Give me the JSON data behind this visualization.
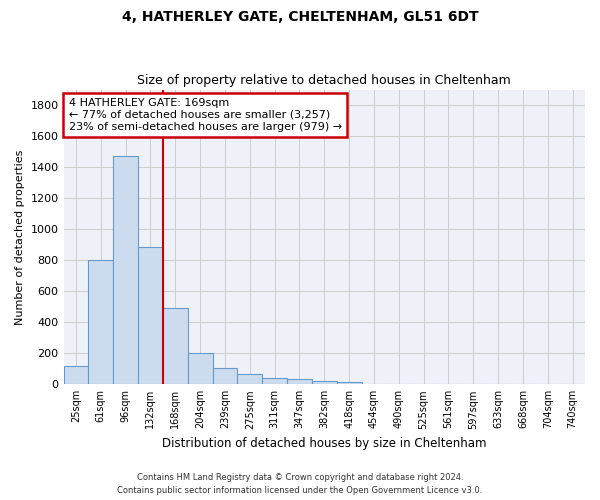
{
  "title1": "4, HATHERLEY GATE, CHELTENHAM, GL51 6DT",
  "title2": "Size of property relative to detached houses in Cheltenham",
  "xlabel": "Distribution of detached houses by size in Cheltenham",
  "ylabel": "Number of detached properties",
  "footer1": "Contains HM Land Registry data © Crown copyright and database right 2024.",
  "footer2": "Contains public sector information licensed under the Open Government Licence v3.0.",
  "categories": [
    "25sqm",
    "61sqm",
    "96sqm",
    "132sqm",
    "168sqm",
    "204sqm",
    "239sqm",
    "275sqm",
    "311sqm",
    "347sqm",
    "382sqm",
    "418sqm",
    "454sqm",
    "490sqm",
    "525sqm",
    "561sqm",
    "597sqm",
    "633sqm",
    "668sqm",
    "704sqm",
    "740sqm"
  ],
  "values": [
    120,
    800,
    1470,
    885,
    490,
    205,
    105,
    65,
    40,
    35,
    20,
    15,
    0,
    0,
    0,
    0,
    0,
    0,
    0,
    0,
    0
  ],
  "bar_color": "#ccdcee",
  "bar_edge_color": "#6699cc",
  "property_line_x": 3.5,
  "annotation_text": "4 HATHERLEY GATE: 169sqm\n← 77% of detached houses are smaller (3,257)\n23% of semi-detached houses are larger (979) →",
  "annotation_box_color": "#ffffff",
  "annotation_box_edge_color": "#cc0000",
  "vline_color": "#cc0000",
  "grid_color": "#cccccc",
  "ylim": [
    0,
    1900
  ],
  "yticks": [
    0,
    200,
    400,
    600,
    800,
    1000,
    1200,
    1400,
    1600,
    1800
  ],
  "background_color": "#ffffff",
  "axes_background_color": "#eef2f8"
}
